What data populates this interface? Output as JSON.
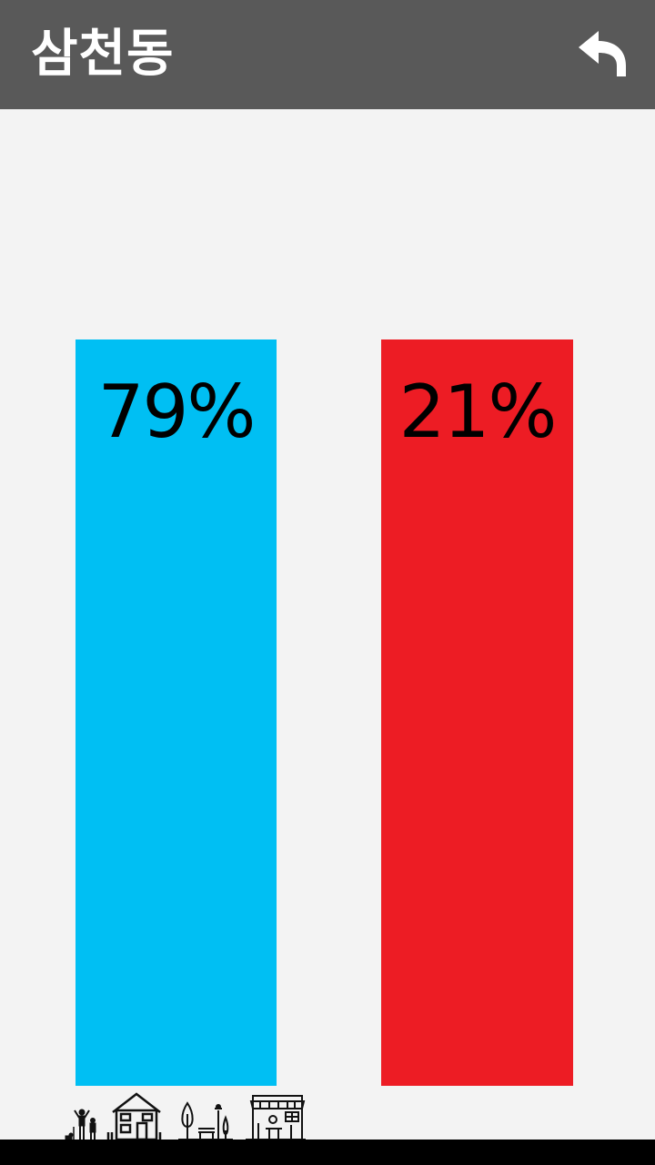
{
  "header": {
    "title": "삼천동",
    "back_icon": "undo-arrow-icon"
  },
  "chart_data": {
    "type": "bar",
    "categories": [
      "",
      ""
    ],
    "values": [
      79,
      21
    ],
    "value_labels": [
      "79%",
      "21%"
    ],
    "colors": [
      "#00bff3",
      "#ed1c24"
    ],
    "ylim": [
      0,
      100
    ],
    "title": "",
    "xlabel": "",
    "ylabel": "",
    "grid": false,
    "legend": "none"
  },
  "illustration": {
    "icons": [
      "people-icon",
      "house-icon",
      "park-icon",
      "shop-icon"
    ]
  },
  "colors": {
    "header_bg": "#595959",
    "background": "#f3f3f3"
  }
}
